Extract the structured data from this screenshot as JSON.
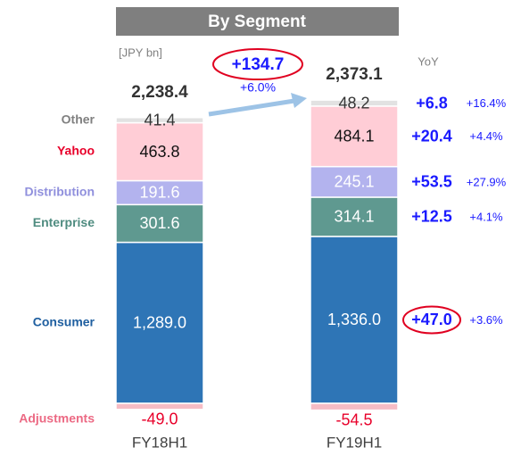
{
  "chart_data": {
    "type": "bar",
    "stacked": true,
    "title": "By Segment",
    "unit": "[JPY bn]",
    "categories": [
      "FY18H1",
      "FY19H1"
    ],
    "series": [
      {
        "name": "Consumer",
        "color": "#2e75b6",
        "label_color": "#1f5fa0",
        "value_label_color": "#ffffff",
        "values": [
          1289.0,
          1336.0
        ],
        "value_labels": [
          "1,289.0",
          "1,336.0"
        ],
        "yoy_change": 47.0,
        "yoy_change_label": "+47.0",
        "yoy_pct": 3.6,
        "yoy_pct_label": "+3.6%",
        "highlight": true
      },
      {
        "name": "Enterprise",
        "color": "#5f9990",
        "label_color": "#4f8c80",
        "value_label_color": "#ffffff",
        "values": [
          301.6,
          314.1
        ],
        "value_labels": [
          "301.6",
          "314.1"
        ],
        "yoy_change": 12.5,
        "yoy_change_label": "+12.5",
        "yoy_pct": 4.1,
        "yoy_pct_label": "+4.1%"
      },
      {
        "name": "Distribution",
        "color": "#b3b3ee",
        "label_color": "#9090dd",
        "value_label_color": "#ffffff",
        "values": [
          191.6,
          245.1
        ],
        "value_labels": [
          "191.6",
          "245.1"
        ],
        "yoy_change": 53.5,
        "yoy_change_label": "+53.5",
        "yoy_pct": 27.9,
        "yoy_pct_label": "+27.9%"
      },
      {
        "name": "Yahoo",
        "color": "#ffcdd6",
        "label_color": "#e8002a",
        "value_label_color": "#111111",
        "values": [
          463.8,
          484.1
        ],
        "value_labels": [
          "463.8",
          "484.1"
        ],
        "yoy_change": 20.4,
        "yoy_change_label": "+20.4",
        "yoy_pct": 4.4,
        "yoy_pct_label": "+4.4%"
      },
      {
        "name": "Other",
        "color": "#e2e2e2",
        "label_color": "#808080",
        "value_label_color": "#333333",
        "values": [
          41.4,
          48.2
        ],
        "value_labels": [
          "41.4",
          "48.2"
        ],
        "yoy_change": 6.8,
        "yoy_change_label": "+6.8",
        "yoy_pct": 16.4,
        "yoy_pct_label": "+16.4%"
      },
      {
        "name": "Adjustments",
        "color": "#f6bcc5",
        "label_color": "#ec6a84",
        "value_label_color": "#e8002a",
        "values": [
          -49.0,
          -54.5
        ],
        "value_labels": [
          "-49.0",
          "-54.5"
        ]
      }
    ],
    "totals": {
      "values": [
        2238.4,
        2373.1
      ],
      "value_labels": [
        "2,238.4",
        "2,373.1"
      ]
    },
    "total_change": {
      "value": 134.7,
      "label": "+134.7",
      "pct": 6.0,
      "pct_label": "+6.0%"
    },
    "yoy_header": "YoY"
  }
}
